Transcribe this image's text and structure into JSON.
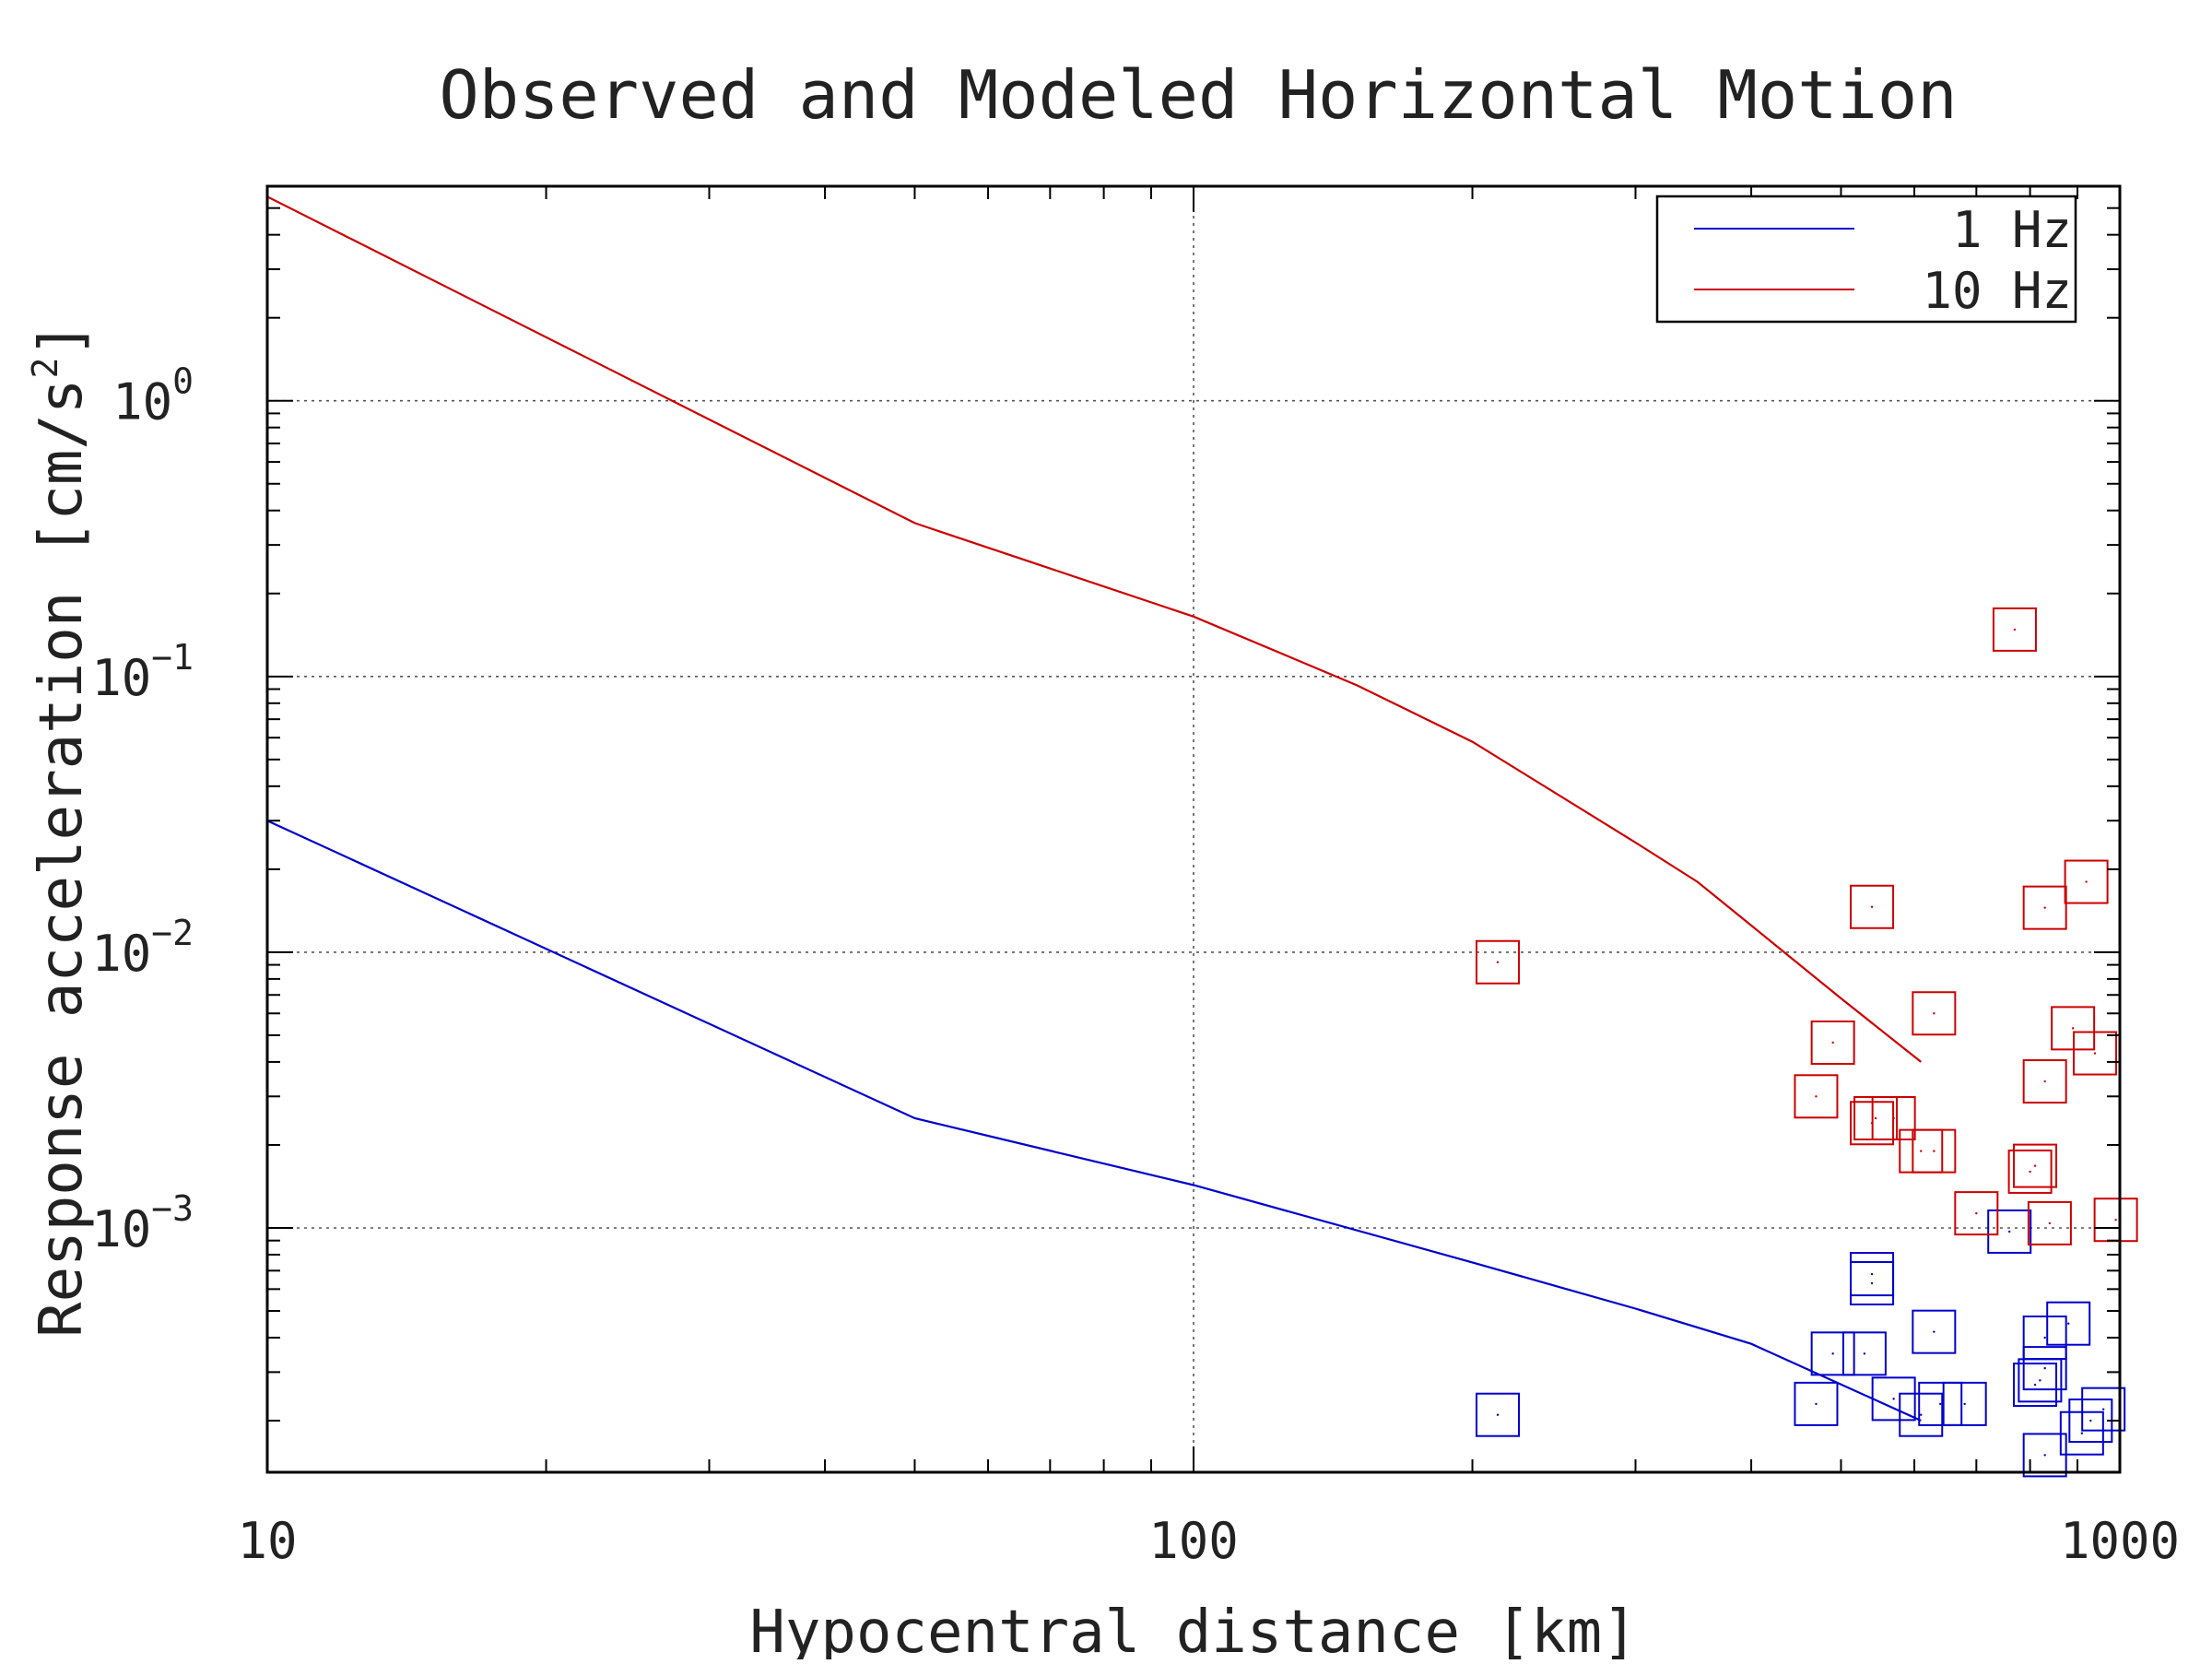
{
  "chart_data": {
    "type": "line",
    "title": "Observed and Modeled Horizontal Motion",
    "xlabel": "Hypocentral distance [km]",
    "ylabel_main": "Response acceleration [cm/s",
    "ylabel_sup": "2",
    "ylabel_close": "]",
    "x_scale": "log",
    "y_scale": "log",
    "xlim": [
      10,
      1000
    ],
    "ylim": [
      0.00013,
      6
    ],
    "grid": true,
    "legend_position": "top-right",
    "x_ticks": [
      {
        "value": 10,
        "label": "10"
      },
      {
        "value": 100,
        "label": "100"
      },
      {
        "value": 1000,
        "label": "1000"
      }
    ],
    "y_ticks": [
      {
        "value": 1,
        "base": "10",
        "exp": "0"
      },
      {
        "value": 0.1,
        "base": "10",
        "exp": "−1"
      },
      {
        "value": 0.01,
        "base": "10",
        "exp": "−2"
      },
      {
        "value": 0.001,
        "base": "10",
        "exp": "−3"
      }
    ],
    "series": [
      {
        "name": "1 Hz",
        "color": "#0000cc",
        "model": [
          [
            10,
            0.03
          ],
          [
            50,
            0.0025
          ],
          [
            100,
            0.00143
          ],
          [
            200,
            0.00075
          ],
          [
            300,
            0.00051
          ],
          [
            400,
            0.00038
          ],
          [
            610,
            0.0002
          ]
        ],
        "observed": [
          [
            213,
            0.00021
          ],
          [
            470,
            0.00023
          ],
          [
            490,
            0.00035
          ],
          [
            530,
            0.00035
          ],
          [
            540,
            0.00068
          ],
          [
            540,
            0.00063
          ],
          [
            570,
            0.00024
          ],
          [
            610,
            0.00021
          ],
          [
            630,
            0.00042
          ],
          [
            640,
            0.00023
          ],
          [
            680,
            0.00023
          ],
          [
            760,
            0.00097
          ],
          [
            810,
            0.00027
          ],
          [
            820,
            0.00028
          ],
          [
            830,
            0.0004
          ],
          [
            830,
            0.00031
          ],
          [
            830,
            0.00015
          ],
          [
            880,
            0.00045
          ],
          [
            910,
            0.00018
          ],
          [
            930,
            0.0002
          ],
          [
            960,
            0.00022
          ]
        ]
      },
      {
        "name": "10 Hz",
        "color": "#cc0000",
        "model": [
          [
            10,
            5.5
          ],
          [
            50,
            0.36
          ],
          [
            100,
            0.165
          ],
          [
            150,
            0.093
          ],
          [
            200,
            0.058
          ],
          [
            300,
            0.025
          ],
          [
            350,
            0.018
          ],
          [
            400,
            0.0125
          ],
          [
            500,
            0.0068
          ],
          [
            610,
            0.004
          ]
        ],
        "observed": [
          [
            213,
            0.0092
          ],
          [
            470,
            0.003
          ],
          [
            490,
            0.0047
          ],
          [
            540,
            0.0146
          ],
          [
            540,
            0.0024
          ],
          [
            545,
            0.0025
          ],
          [
            570,
            0.0025
          ],
          [
            610,
            0.0019
          ],
          [
            630,
            0.0019
          ],
          [
            630,
            0.006
          ],
          [
            700,
            0.00113
          ],
          [
            770,
            0.148
          ],
          [
            800,
            0.0016
          ],
          [
            810,
            0.00168
          ],
          [
            830,
            0.0034
          ],
          [
            830,
            0.0145
          ],
          [
            840,
            0.00104
          ],
          [
            890,
            0.0053
          ],
          [
            920,
            0.018
          ],
          [
            940,
            0.0043
          ],
          [
            990,
            0.00107
          ]
        ]
      }
    ]
  }
}
